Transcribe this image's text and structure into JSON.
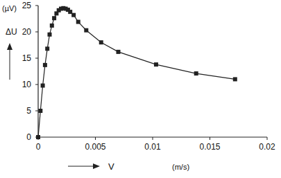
{
  "chart_data": {
    "type": "line",
    "y_label": "ΔU",
    "y_unit": "(µV)",
    "x_label": "V",
    "x_unit": "(m/s)",
    "x": [
      0,
      0.0002,
      0.0004,
      0.0006,
      0.0008,
      0.001,
      0.0012,
      0.0014,
      0.0016,
      0.0018,
      0.002,
      0.0022,
      0.0024,
      0.0026,
      0.0028,
      0.0031,
      0.0035,
      0.0042,
      0.0055,
      0.007,
      0.0103,
      0.0138,
      0.0172
    ],
    "series": [
      {
        "name": "ΔU",
        "color": "#222222",
        "marker": "square",
        "line_style": "solid",
        "values": [
          0,
          5,
          9.8,
          13.7,
          16.8,
          19.5,
          21.2,
          22.6,
          23.5,
          24.1,
          24.4,
          24.5,
          24.4,
          24.2,
          23.8,
          23.2,
          21.9,
          20.3,
          18,
          16.2,
          13.8,
          12.1,
          11
        ]
      }
    ],
    "xlim": [
      0,
      0.02
    ],
    "xticks": [
      0,
      0.005,
      0.01,
      0.015,
      0.02
    ],
    "ylim": [
      0,
      25
    ],
    "yticks": [
      0,
      5,
      10,
      15,
      20,
      25
    ],
    "grid": false
  }
}
